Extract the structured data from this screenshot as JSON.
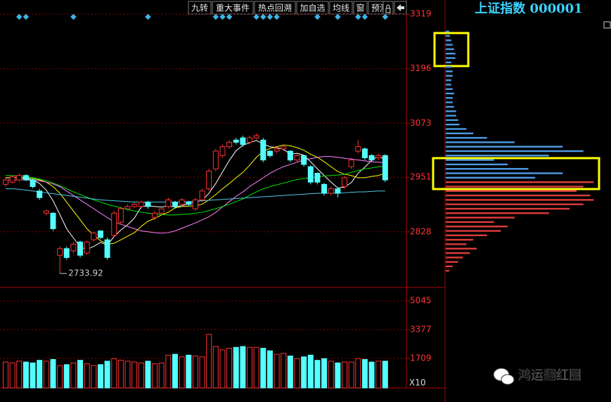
{
  "header": {
    "title": "上证指数 000001"
  },
  "toolbar": [
    "九转",
    "重大事件",
    "热点回溯",
    "加自选",
    "均线",
    "窗",
    "预测"
  ],
  "watermark": "鸿运翻红圈",
  "chart_data": [
    {
      "type": "candlestick",
      "up_color": "#ff3232",
      "down_color": "#54ffff",
      "ylim": [
        2704,
        3351
      ],
      "yticks": [
        2828,
        2951,
        3073,
        3196,
        3319
      ],
      "grid": true,
      "open": [
        2935,
        2940,
        2945,
        2955,
        2945,
        2920,
        2870,
        2870,
        2775,
        2790,
        2785,
        2805,
        2780,
        2810,
        2830,
        2810,
        2820,
        2850,
        2880,
        2885,
        2885,
        2895,
        2860,
        2870,
        2885,
        2895,
        2890,
        2895,
        2880,
        2900,
        2925,
        2970,
        3000,
        3020,
        3035,
        3040,
        3030,
        3040,
        3035,
        3010,
        3010,
        3015,
        3010,
        2990,
        3000,
        2975,
        2960,
        2935,
        2915,
        2925,
        2930,
        2975,
        3010,
        3015,
        3000,
        2995,
        3000
      ],
      "high": [
        2950,
        2955,
        2960,
        2958,
        2948,
        2925,
        2878,
        2872,
        2795,
        2795,
        2805,
        2808,
        2808,
        2828,
        2832,
        2815,
        2875,
        2885,
        2890,
        2894,
        2898,
        2898,
        2875,
        2884,
        2905,
        2898,
        2904,
        2898,
        2905,
        2925,
        2970,
        3015,
        3025,
        3035,
        3040,
        3045,
        3045,
        3050,
        3040,
        3012,
        3020,
        3024,
        3012,
        3003,
        3002,
        2978,
        2962,
        2938,
        2930,
        2928,
        2955,
        2995,
        3035,
        3018,
        3003,
        3005,
        3003
      ],
      "low": [
        2930,
        2937,
        2942,
        2942,
        2926,
        2900,
        2865,
        2830,
        2733.92,
        2765,
        2780,
        2770,
        2776,
        2806,
        2812,
        2765,
        2815,
        2845,
        2876,
        2882,
        2880,
        2880,
        2855,
        2866,
        2880,
        2880,
        2885,
        2886,
        2875,
        2895,
        2920,
        2965,
        2995,
        3015,
        3025,
        3020,
        3025,
        3036,
        2985,
        2995,
        3005,
        3010,
        2985,
        2985,
        2975,
        2935,
        2935,
        2910,
        2910,
        2905,
        2925,
        2970,
        3005,
        2990,
        2985,
        2990,
        2940
      ],
      "close": [
        2945,
        2952,
        2955,
        2945,
        2930,
        2905,
        2875,
        2835,
        2790,
        2770,
        2800,
        2775,
        2805,
        2825,
        2815,
        2770,
        2870,
        2880,
        2885,
        2890,
        2895,
        2885,
        2870,
        2880,
        2900,
        2885,
        2900,
        2890,
        2900,
        2920,
        2965,
        3010,
        3020,
        3030,
        3030,
        3025,
        3040,
        3045,
        2990,
        3000,
        3015,
        3020,
        2990,
        3000,
        2980,
        2940,
        2940,
        2915,
        2925,
        2915,
        2950,
        2990,
        3020,
        2995,
        2990,
        3000,
        2945
      ],
      "signal_days": [
        2,
        3,
        10,
        21,
        31,
        32,
        33,
        37,
        38,
        39,
        40,
        46,
        49,
        52,
        53,
        56
      ],
      "signal_color": "#3cb4e6",
      "series": [
        {
          "color": "#ffffff",
          "values": [
            2950,
            2950,
            2950,
            2948,
            2945,
            2937,
            2922,
            2898,
            2867,
            2835,
            2814,
            2794,
            2788,
            2795,
            2804,
            2798,
            2817,
            2832,
            2844,
            2859,
            2884,
            2887,
            2885,
            2884,
            2886,
            2884,
            2887,
            2891,
            2895,
            2899,
            2915,
            2937,
            2963,
            2989,
            3011,
            3023,
            3029,
            3034,
            3026,
            3020,
            3018,
            3014,
            3003,
            3005,
            3001,
            2986,
            2970,
            2955,
            2940,
            2927,
            2929,
            2939,
            2960,
            2974,
            2989,
            2999,
            2990
          ]
        },
        {
          "color": "#ffff00",
          "values": [
            2950,
            2950,
            2950,
            2950,
            2948,
            2945,
            2940,
            2930,
            2915,
            2895,
            2875,
            2855,
            2835,
            2820,
            2808,
            2800,
            2802,
            2810,
            2818,
            2826,
            2840,
            2852,
            2858,
            2866,
            2872,
            2882,
            2885,
            2886,
            2887,
            2890,
            2900,
            2912,
            2925,
            2937,
            2950,
            2962,
            2978,
            2996,
            3010,
            3016,
            3020,
            3024,
            3022,
            3018,
            3012,
            3003,
            2996,
            2986,
            2975,
            2964,
            2958,
            2955,
            2950,
            2950,
            2953,
            2955,
            2960
          ]
        },
        {
          "color": "#ff80ff",
          "values": [
            2945,
            2945,
            2945,
            2945,
            2944,
            2943,
            2940,
            2936,
            2930,
            2920,
            2910,
            2900,
            2890,
            2880,
            2870,
            2860,
            2850,
            2845,
            2840,
            2835,
            2830,
            2828,
            2826,
            2825,
            2826,
            2830,
            2836,
            2842,
            2848,
            2855,
            2862,
            2872,
            2884,
            2896,
            2908,
            2918,
            2930,
            2940,
            2950,
            2960,
            2968,
            2975,
            2980,
            2985,
            2990,
            2993,
            2996,
            2998,
            2998,
            2996,
            2994,
            2992,
            2990,
            2988,
            2986,
            2985,
            2984
          ]
        },
        {
          "color": "#00e600",
          "values": [
            2955,
            2955,
            2954,
            2953,
            2950,
            2947,
            2943,
            2938,
            2932,
            2925,
            2918,
            2912,
            2906,
            2900,
            2895,
            2890,
            2886,
            2882,
            2878,
            2875,
            2872,
            2870,
            2868,
            2867,
            2866,
            2866,
            2867,
            2868,
            2870,
            2872,
            2876,
            2880,
            2885,
            2890,
            2896,
            2902,
            2910,
            2918,
            2925,
            2930,
            2934,
            2938,
            2942,
            2946,
            2948,
            2950,
            2952,
            2954,
            2955,
            2956,
            2958,
            2962,
            2966,
            2970,
            2972,
            2975,
            2976
          ]
        },
        {
          "color": "#50c8e6",
          "values": [
            2925,
            2925,
            2924,
            2922,
            2920,
            2918,
            2916,
            2914,
            2912,
            2910,
            2908,
            2906,
            2904,
            2902,
            2900,
            2899,
            2898,
            2897,
            2896,
            2895,
            2895,
            2895,
            2895,
            2895,
            2895,
            2895,
            2895,
            2896,
            2897,
            2898,
            2899,
            2900,
            2901,
            2902,
            2903,
            2904,
            2905,
            2906,
            2907,
            2908,
            2909,
            2910,
            2911,
            2912,
            2913,
            2914,
            2915,
            2915,
            2915,
            2915,
            2916,
            2917,
            2918,
            2918,
            2919,
            2920,
            2920
          ]
        }
      ]
    },
    {
      "type": "volume",
      "ylim": [
        0,
        5777
      ],
      "yticks": [
        1709,
        3377,
        5045
      ],
      "unit": "X10",
      "values": [
        1500,
        1450,
        1550,
        1500,
        1450,
        1600,
        1550,
        1650,
        1300,
        1350,
        1450,
        1600,
        1400,
        1300,
        1350,
        1550,
        1700,
        1600,
        1550,
        1500,
        1450,
        1550,
        1400,
        1450,
        1900,
        1950,
        1800,
        1900,
        1850,
        1800,
        3100,
        2400,
        2200,
        2300,
        2350,
        2400,
        2350,
        2350,
        2300,
        2150,
        1950,
        2000,
        1850,
        1700,
        1800,
        1900,
        1600,
        1700,
        1550,
        1450,
        1500,
        1500,
        1700,
        1650,
        1500,
        1550,
        1550
      ]
    },
    {
      "type": "profile",
      "xlim": [
        0,
        235
      ],
      "series": [
        {
          "color": "#4d9be6",
          "y": [
            2950,
            2960,
            2970,
            2980,
            2990,
            3000,
            3010,
            3020,
            3030,
            3040,
            3050,
            3060,
            3070,
            3080,
            3090,
            3100,
            3110,
            3120,
            3130,
            3140,
            3150,
            3160,
            3170,
            3180,
            3190,
            3200,
            3210,
            3220,
            3230,
            3240,
            3250,
            3260,
            3270,
            3280
          ],
          "values": [
            130,
            170,
            120,
            90,
            70,
            150,
            200,
            170,
            100,
            60,
            40,
            30,
            20,
            18,
            15,
            15,
            12,
            10,
            10,
            12,
            10,
            8,
            8,
            10,
            10,
            8,
            8,
            14,
            14,
            12,
            10,
            8,
            6,
            5
          ]
        },
        {
          "color": "#e03c3c",
          "y": [
            2740,
            2750,
            2760,
            2770,
            2780,
            2790,
            2800,
            2810,
            2820,
            2830,
            2840,
            2850,
            2860,
            2870,
            2880,
            2890,
            2900,
            2910,
            2920,
            2930,
            2940
          ],
          "values": [
            5,
            10,
            18,
            25,
            35,
            45,
            30,
            40,
            60,
            80,
            90,
            70,
            100,
            150,
            180,
            200,
            215,
            210,
            190,
            200,
            215
          ]
        }
      ]
    }
  ]
}
